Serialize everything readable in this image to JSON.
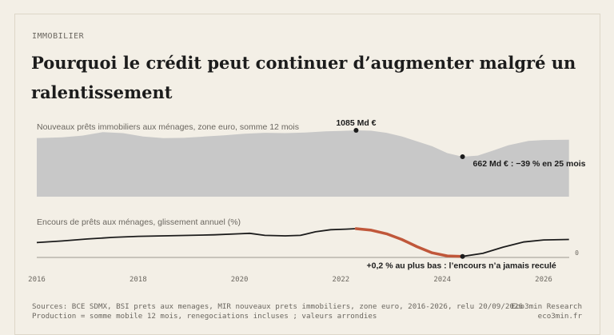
{
  "header": {
    "kicker": "IMMOBILIER",
    "title": "Pourquoi le crédit peut continuer d’augmenter malgré un ralentissement"
  },
  "chart_data": [
    {
      "type": "area",
      "title": "Nouveaux prêts immobiliers aux ménages, zone euro, somme 12 mois",
      "unit": "Md €",
      "color": "#c8c8c8",
      "x": [
        2016.0,
        2016.5,
        2016.9,
        2017.3,
        2017.7,
        2018.1,
        2018.5,
        2018.9,
        2019.3,
        2019.7,
        2020.1,
        2020.5,
        2020.9,
        2021.3,
        2021.7,
        2022.0,
        2022.3,
        2022.6,
        2022.9,
        2023.2,
        2023.5,
        2023.8,
        2024.1,
        2024.4,
        2024.7,
        2025.0,
        2025.3,
        2025.7,
        2026.0,
        2026.5
      ],
      "y": [
        960,
        972,
        1000,
        1055,
        1040,
        985,
        960,
        965,
        985,
        1005,
        1030,
        1045,
        1040,
        1050,
        1070,
        1075,
        1085,
        1078,
        1045,
        988,
        910,
        830,
        720,
        662,
        680,
        760,
        845,
        915,
        930,
        935
      ],
      "annotations": [
        {
          "x": 2022.3,
          "y": 1085,
          "label": "1085 Md €"
        },
        {
          "x": 2024.4,
          "y": 662,
          "label": "662 Md € : −39 % en 25 mois"
        }
      ]
    },
    {
      "type": "line",
      "title": "Encours de prêts aux ménages, glissement annuel (%)",
      "unit": "%",
      "x_ticks": [
        "2016",
        "2018",
        "2020",
        "2022",
        "2024",
        "2026"
      ],
      "zero_label": "0",
      "highlight_color": "#c0573a",
      "x": [
        2016.0,
        2016.5,
        2017.0,
        2017.5,
        2018.0,
        2018.5,
        2019.0,
        2019.5,
        2020.0,
        2020.2,
        2020.5,
        2020.9,
        2021.2,
        2021.5,
        2021.8,
        2022.1,
        2022.3,
        2022.6,
        2022.9,
        2023.2,
        2023.5,
        2023.8,
        2024.1,
        2024.4,
        2024.8,
        2025.2,
        2025.6,
        2026.0,
        2026.5
      ],
      "y": [
        2.9,
        3.2,
        3.6,
        3.9,
        4.1,
        4.2,
        4.3,
        4.4,
        4.6,
        4.7,
        4.3,
        4.2,
        4.3,
        5.0,
        5.4,
        5.5,
        5.6,
        5.3,
        4.6,
        3.5,
        2.1,
        0.9,
        0.3,
        0.2,
        0.8,
        2.0,
        3.0,
        3.4,
        3.5
      ],
      "highlight_range": [
        2022.3,
        2024.4
      ],
      "annotation": {
        "x": 2024.4,
        "y": 0.2,
        "label": "+0,2 % au plus bas : l’encours n’a jamais reculé"
      }
    }
  ],
  "footer": {
    "line1": "Sources: BCE SDMX, BSI prets aux menages, MIR nouveaux prets immobiliers, zone euro, 2016-2026, relu 20/09/2026",
    "line2": "Production = somme mobile 12 mois, renegociations incluses ; valeurs arrondies",
    "brand1": "Eco3min Research",
    "brand2": "eco3min.fr"
  }
}
